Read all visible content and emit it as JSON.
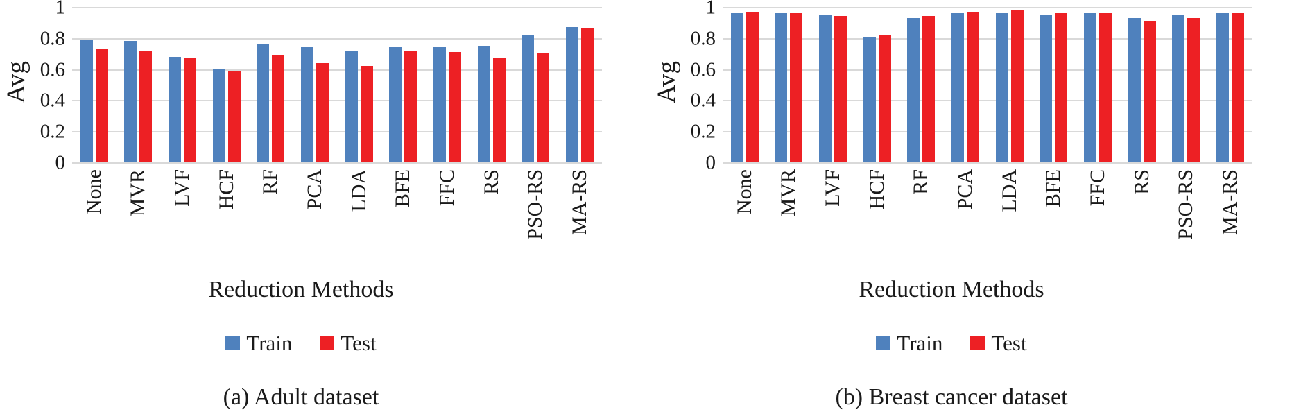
{
  "figure": {
    "background": "#ffffff",
    "text_color": "#1a1a1a",
    "gridline_color": "#d9d9d9",
    "train_color": "#4f81bd",
    "test_color": "#ed2024"
  },
  "chart_data": [
    {
      "type": "bar",
      "title": "(a) Adult dataset",
      "xlabel": "Reduction Methods",
      "ylabel": "Avg",
      "ylim": [
        0,
        1
      ],
      "yticks": [
        0,
        0.2,
        0.4,
        0.6,
        0.8,
        1
      ],
      "grid": true,
      "legend_position": "bottom",
      "categories": [
        "None",
        "MVR",
        "LVF",
        "HCF",
        "RF",
        "PCA",
        "LDA",
        "BFE",
        "FFC",
        "RS",
        "PSO-RS",
        "MA-RS"
      ],
      "series": [
        {
          "name": "Train",
          "color": "#4f81bd",
          "values": [
            0.79,
            0.78,
            0.68,
            0.6,
            0.76,
            0.74,
            0.72,
            0.74,
            0.74,
            0.75,
            0.82,
            0.87
          ]
        },
        {
          "name": "Test",
          "color": "#ed2024",
          "values": [
            0.73,
            0.72,
            0.67,
            0.59,
            0.69,
            0.64,
            0.62,
            0.72,
            0.71,
            0.67,
            0.7,
            0.86
          ]
        }
      ]
    },
    {
      "type": "bar",
      "title": "(b) Breast cancer dataset",
      "xlabel": "Reduction Methods",
      "ylabel": "Avg",
      "ylim": [
        0,
        1
      ],
      "yticks": [
        0,
        0.2,
        0.4,
        0.6,
        0.8,
        1
      ],
      "grid": true,
      "legend_position": "bottom",
      "categories": [
        "None",
        "MVR",
        "LVF",
        "HCF",
        "RF",
        "PCA",
        "LDA",
        "BFE",
        "FFC",
        "RS",
        "PSO-RS",
        "MA-RS"
      ],
      "series": [
        {
          "name": "Train",
          "color": "#4f81bd",
          "values": [
            0.96,
            0.96,
            0.95,
            0.81,
            0.93,
            0.96,
            0.96,
            0.95,
            0.96,
            0.93,
            0.95,
            0.96
          ]
        },
        {
          "name": "Test",
          "color": "#ed2024",
          "values": [
            0.97,
            0.96,
            0.94,
            0.82,
            0.94,
            0.97,
            0.98,
            0.96,
            0.96,
            0.91,
            0.93,
            0.96
          ]
        }
      ]
    }
  ]
}
